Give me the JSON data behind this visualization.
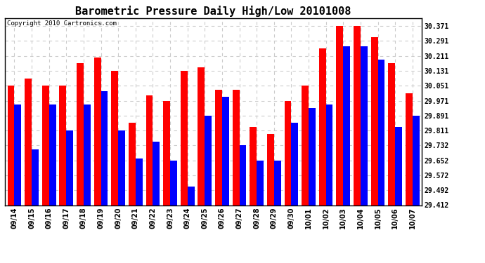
{
  "title": "Barometric Pressure Daily High/Low 20101008",
  "copyright": "Copyright 2010 Cartronics.com",
  "categories": [
    "09/14",
    "09/15",
    "09/16",
    "09/17",
    "09/18",
    "09/19",
    "09/20",
    "09/21",
    "09/22",
    "09/23",
    "09/24",
    "09/25",
    "09/26",
    "09/27",
    "09/28",
    "09/29",
    "09/30",
    "10/01",
    "10/02",
    "10/03",
    "10/04",
    "10/05",
    "10/06",
    "10/07"
  ],
  "highs": [
    30.051,
    30.091,
    30.051,
    30.051,
    30.171,
    30.201,
    30.131,
    29.851,
    30.001,
    29.971,
    30.131,
    30.151,
    30.031,
    30.031,
    29.831,
    29.791,
    29.971,
    30.051,
    30.251,
    30.371,
    30.371,
    30.311,
    30.171,
    30.011
  ],
  "lows": [
    29.951,
    29.711,
    29.951,
    29.811,
    29.951,
    30.021,
    29.811,
    29.661,
    29.751,
    29.651,
    29.511,
    29.891,
    29.991,
    29.731,
    29.651,
    29.651,
    29.851,
    29.931,
    29.951,
    30.261,
    30.261,
    30.191,
    29.831,
    29.891
  ],
  "ymin": 29.412,
  "ymax": 30.411,
  "yticks": [
    29.412,
    29.492,
    29.572,
    29.652,
    29.732,
    29.811,
    29.891,
    29.971,
    30.051,
    30.131,
    30.211,
    30.291,
    30.371
  ],
  "ytick_labels": [
    "29.412",
    "29.492",
    "29.572",
    "29.652",
    "29.732",
    "29.811",
    "29.891",
    "29.971",
    "30.051",
    "30.131",
    "30.211",
    "30.291",
    "30.371"
  ],
  "high_color": "#ff0000",
  "low_color": "#0000ff",
  "bg_color": "#ffffff",
  "plot_bg_color": "#ffffff",
  "grid_color": "#cccccc",
  "title_fontsize": 11,
  "bar_width": 0.4
}
